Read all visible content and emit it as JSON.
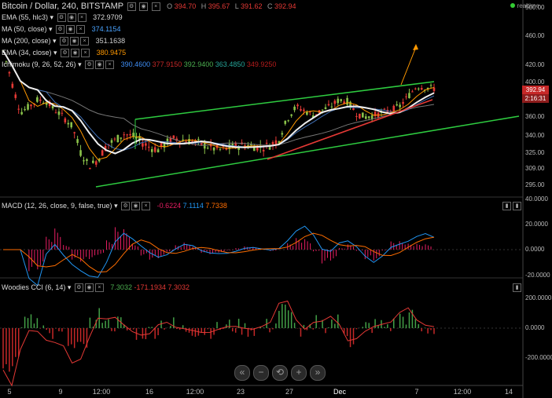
{
  "header": {
    "title": "Bitcoin / Dollar, 240, BITSTAMP",
    "ohlc": [
      {
        "k": "O",
        "v": "394.70"
      },
      {
        "k": "H",
        "v": "395.67"
      },
      {
        "k": "L",
        "v": "391.62"
      },
      {
        "k": "C",
        "v": "392.94"
      }
    ],
    "realtime": "realtime"
  },
  "indicators": [
    {
      "label": "EMA (55, hlc3)",
      "value": "372.9709",
      "color": "#dddddd"
    },
    {
      "label": "MA (50, close)",
      "value": "374.1154",
      "color": "#4aa3ff"
    },
    {
      "label": "MA (200, close)",
      "value": "351.1638",
      "color": "#cccccc"
    },
    {
      "label": "EMA (34, close)",
      "value": "380.9475",
      "color": "#ff9800"
    },
    {
      "label": "Ichimoku (9, 26, 52, 26)",
      "values": [
        "390.4600",
        "377.9150",
        "392.9400",
        "363.4850",
        "349.9250"
      ],
      "colors": [
        "#3f8ef5",
        "#c62828",
        "#4caf50",
        "#26a69a",
        "#b71c1c"
      ]
    }
  ],
  "macd": {
    "label": "MACD (12, 26, close, 9, false, true)",
    "values": [
      "-0.6224",
      "7.1114",
      "7.7338"
    ],
    "colors": [
      "#e91e63",
      "#2196f3",
      "#ff6d00"
    ]
  },
  "cci": {
    "label": "Woodies CCI (6, 14)",
    "values": [
      "7.3032",
      "-171.1934",
      "7.3032"
    ],
    "colors": [
      "#4caf50",
      "#e53935",
      "#e53935"
    ]
  },
  "price_axis": [
    "500.00",
    "460.00",
    "420.00",
    "400.00",
    "380.00",
    "360.00",
    "340.00",
    "325.00",
    "309.00",
    "295.00"
  ],
  "price_tags": {
    "last": "392.94",
    "countdown": "2:16:31"
  },
  "macd_axis": [
    "40.0000",
    "20.0000",
    "0.0000",
    "-20.0000"
  ],
  "cci_axis": [
    "200.0000",
    "0.0000",
    "-200.0000"
  ],
  "time_axis": [
    "5",
    "9",
    "12:00",
    "16",
    "12:00",
    "23",
    "27",
    "Dec",
    "7",
    "12:00",
    "14"
  ],
  "nav": [
    "«",
    "−",
    "⟲",
    "+",
    "»"
  ],
  "chart_data": {
    "type": "line",
    "title": "Bitcoin / Dollar, 240, BITSTAMP",
    "series": [
      {
        "name": "Bitcoin / Dollar",
        "values": [
          440,
          400,
          365,
          372,
          380,
          378,
          368,
          360,
          350,
          325,
          312,
          318,
          332,
          336,
          342,
          340,
          335,
          330,
          328,
          334,
          338,
          336,
          335,
          333,
          330,
          328,
          329,
          331,
          332,
          331,
          330,
          332,
          337,
          358,
          372,
          367,
          362,
          368,
          372,
          380,
          378,
          364,
          360,
          362,
          365,
          368,
          372,
          384,
          396,
          394,
          392.94
        ]
      }
    ]
  }
}
